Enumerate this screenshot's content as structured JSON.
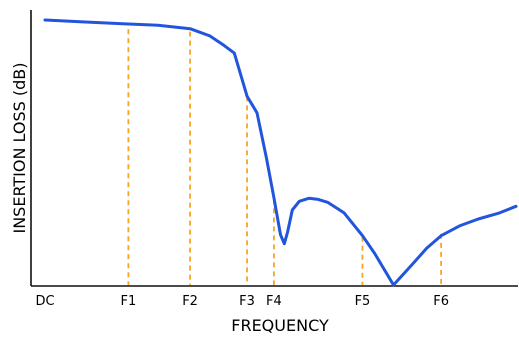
{
  "chart_data": {
    "type": "line",
    "title": "",
    "xlabel": "FREQUENCY",
    "ylabel": "INSERTION LOSS (dB)",
    "xlim": [
      0,
      100
    ],
    "ylim": [
      0,
      100
    ],
    "grid": false,
    "x_tick_labels": [
      {
        "label": "DC",
        "x": 0
      },
      {
        "label": "F1",
        "x": 17.7
      },
      {
        "label": "F2",
        "x": 30.8
      },
      {
        "label": "F3",
        "x": 42.9
      },
      {
        "label": "F4",
        "x": 48.6
      },
      {
        "label": "F5",
        "x": 67.4
      },
      {
        "label": "F6",
        "x": 84.1
      }
    ],
    "markers": [
      {
        "name": "F1",
        "x": 17.7,
        "y": 96.5
      },
      {
        "name": "F2",
        "x": 30.8,
        "y": 95.6
      },
      {
        "name": "F3",
        "x": 42.9,
        "y": 71.2
      },
      {
        "name": "F4",
        "x": 48.6,
        "y": 32.3
      },
      {
        "name": "F5",
        "x": 67.4,
        "y": 18.2
      },
      {
        "name": "F6",
        "x": 84.1,
        "y": 19.3
      }
    ],
    "series": [
      {
        "color": "#2255dd",
        "points": [
          [
            0,
            100
          ],
          [
            8,
            99.3
          ],
          [
            17.7,
            98.5
          ],
          [
            24,
            98
          ],
          [
            30.8,
            96.7
          ],
          [
            35,
            94
          ],
          [
            38,
            90.4
          ],
          [
            40.2,
            87.5
          ],
          [
            42.9,
            71.2
          ],
          [
            45,
            65
          ],
          [
            47,
            48
          ],
          [
            48.6,
            33
          ],
          [
            50,
            19
          ],
          [
            50.8,
            15.6
          ],
          [
            51.5,
            20
          ],
          [
            52.5,
            28.3
          ],
          [
            54,
            31.6
          ],
          [
            56,
            32.7
          ],
          [
            58,
            32.3
          ],
          [
            60,
            31.2
          ],
          [
            63.5,
            27.2
          ],
          [
            67.4,
            18.6
          ],
          [
            70,
            11.9
          ],
          [
            74,
            0
          ],
          [
            78,
            7.8
          ],
          [
            81,
            13.8
          ],
          [
            84.1,
            18.6
          ],
          [
            88,
            22.3
          ],
          [
            92,
            24.9
          ],
          [
            96.5,
            27.2
          ],
          [
            100,
            29.7
          ]
        ]
      }
    ],
    "marker_color": "#f5a623",
    "axis_color": "#111111"
  }
}
